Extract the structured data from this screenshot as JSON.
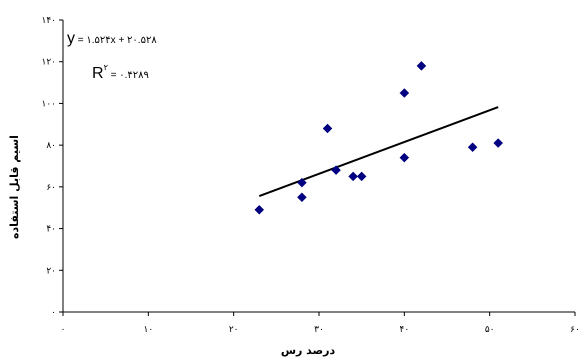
{
  "chart_data": {
    "type": "scatter",
    "xlabel": "درصد رس",
    "ylabel": "اسیم قابل استفاده",
    "xlim": [
      0,
      60
    ],
    "ylim": [
      0,
      140
    ],
    "x_ticks": [
      {
        "value": 0,
        "label": "۰"
      },
      {
        "value": 10,
        "label": "۱۰"
      },
      {
        "value": 20,
        "label": "۲۰"
      },
      {
        "value": 30,
        "label": "۳۰"
      },
      {
        "value": 40,
        "label": "۴۰"
      },
      {
        "value": 50,
        "label": "۵۰"
      },
      {
        "value": 60,
        "label": "۶۰"
      }
    ],
    "y_ticks": [
      {
        "value": 0,
        "label": "۰"
      },
      {
        "value": 20,
        "label": "۲۰"
      },
      {
        "value": 40,
        "label": "۴۰"
      },
      {
        "value": 60,
        "label": "۶۰"
      },
      {
        "value": 80,
        "label": "۸۰"
      },
      {
        "value": 100,
        "label": "۱۰۰"
      },
      {
        "value": 120,
        "label": "۱۲۰"
      },
      {
        "value": 140,
        "label": "۱۴۰"
      }
    ],
    "points": [
      {
        "x": 23,
        "y": 49
      },
      {
        "x": 28,
        "y": 55
      },
      {
        "x": 28,
        "y": 62
      },
      {
        "x": 31,
        "y": 88
      },
      {
        "x": 32,
        "y": 68
      },
      {
        "x": 34,
        "y": 65
      },
      {
        "x": 35,
        "y": 65
      },
      {
        "x": 40,
        "y": 105
      },
      {
        "x": 40,
        "y": 74
      },
      {
        "x": 42,
        "y": 118
      },
      {
        "x": 48,
        "y": 79
      },
      {
        "x": 51,
        "y": 81
      }
    ],
    "trendline": {
      "slope": 1.524,
      "intercept": 20.528,
      "x_range": [
        23,
        51
      ],
      "equation_prefix": "y",
      "equation_rest": " = ۱.۵۲۴x + ۲۰.۵۲۸",
      "r2_label": "R",
      "r2_sup": "۲",
      "r2_value": " = ۰.۴۲۸۹"
    },
    "marker_color": "#000080",
    "line_color": "#000000",
    "grid": false
  }
}
